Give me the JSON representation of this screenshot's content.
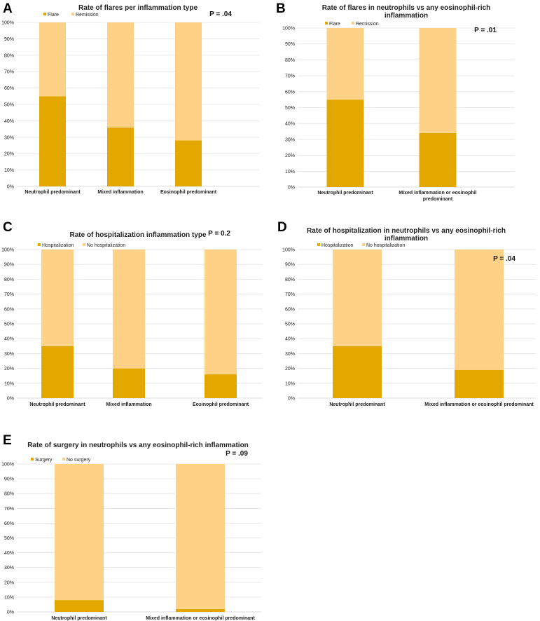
{
  "colors": {
    "lower": "#e2a800",
    "upper": "#fdd287"
  },
  "chart_data": [
    {
      "type": "bar",
      "stacked": true,
      "panel": "A",
      "title": "Rate of flares per inflammation type",
      "p_value": "P = .04",
      "categories": [
        "Neutrophil predominant",
        "Mixed inflammation",
        "Eosinophil predominant"
      ],
      "series": [
        {
          "name": "Flare",
          "values": [
            55,
            36,
            28
          ]
        },
        {
          "name": "Remission",
          "values": [
            45,
            64,
            72
          ]
        }
      ],
      "y_ticks": [
        "0%",
        "10%",
        "20%",
        "30%",
        "40%",
        "50%",
        "60%",
        "70%",
        "80%",
        "90%",
        "100%"
      ],
      "ylim": [
        0,
        100
      ]
    },
    {
      "type": "bar",
      "stacked": true,
      "panel": "B",
      "title": [
        "Rate of flares in neutrophils vs any eosinophil-rich",
        "inflammation"
      ],
      "p_value": "P = .01",
      "categories": [
        "Neutrophil predominant",
        [
          "Mixed inflammation or eosinophil",
          "predominant"
        ]
      ],
      "series": [
        {
          "name": "Flare",
          "values": [
            55,
            34
          ]
        },
        {
          "name": "Remission",
          "values": [
            45,
            66
          ]
        }
      ],
      "y_ticks": [
        "0%",
        "10%",
        "20%",
        "30%",
        "40%",
        "50%",
        "60%",
        "70%",
        "80%",
        "90%",
        "100%"
      ],
      "ylim": [
        0,
        100
      ]
    },
    {
      "type": "bar",
      "stacked": true,
      "panel": "C",
      "title": "Rate of hospitalization inflammation type",
      "p_value": "P = 0.2",
      "categories": [
        "Neutrophil predominant",
        "Mixed inflammation",
        "Eosinophil predominant"
      ],
      "series": [
        {
          "name": "Hospitalization",
          "values": [
            35,
            20,
            16
          ]
        },
        {
          "name": "No hospitalization",
          "values": [
            65,
            80,
            84
          ]
        }
      ],
      "y_ticks": [
        "0%",
        "10%",
        "20%",
        "30%",
        "40%",
        "50%",
        "60%",
        "70%",
        "80%",
        "90%",
        "100%"
      ],
      "ylim": [
        0,
        100
      ]
    },
    {
      "type": "bar",
      "stacked": true,
      "panel": "D",
      "title": [
        "Rate of hospitalization in neutrophils vs any eosinophil-rich",
        "inflammation"
      ],
      "p_value": "P = .04",
      "categories": [
        "Neutrophil predominant",
        "Mixed inflammation or eosinophil predominant"
      ],
      "series": [
        {
          "name": "Hospitalization",
          "values": [
            35,
            19
          ]
        },
        {
          "name": "No hospitalization",
          "values": [
            65,
            81
          ]
        }
      ],
      "y_ticks": [
        "0%",
        "10%",
        "20%",
        "30%",
        "40%",
        "50%",
        "60%",
        "70%",
        "80%",
        "90%",
        "100%"
      ],
      "ylim": [
        0,
        100
      ]
    },
    {
      "type": "bar",
      "stacked": true,
      "panel": "E",
      "title": "Rate of surgery in neutrophils vs any eosinophil-rich inflammation",
      "p_value": "P = .09",
      "categories": [
        "Neutrophil predominant",
        "Mixed inflammation or eosinophil predominant"
      ],
      "series": [
        {
          "name": "Surgery",
          "values": [
            8,
            2
          ]
        },
        {
          "name": "No surgery",
          "values": [
            92,
            98
          ]
        }
      ],
      "y_ticks": [
        "0%",
        "10%",
        "20%",
        "30%",
        "40%",
        "50%",
        "60%",
        "70%",
        "80%",
        "90%",
        "100%"
      ],
      "ylim": [
        0,
        100
      ]
    }
  ]
}
